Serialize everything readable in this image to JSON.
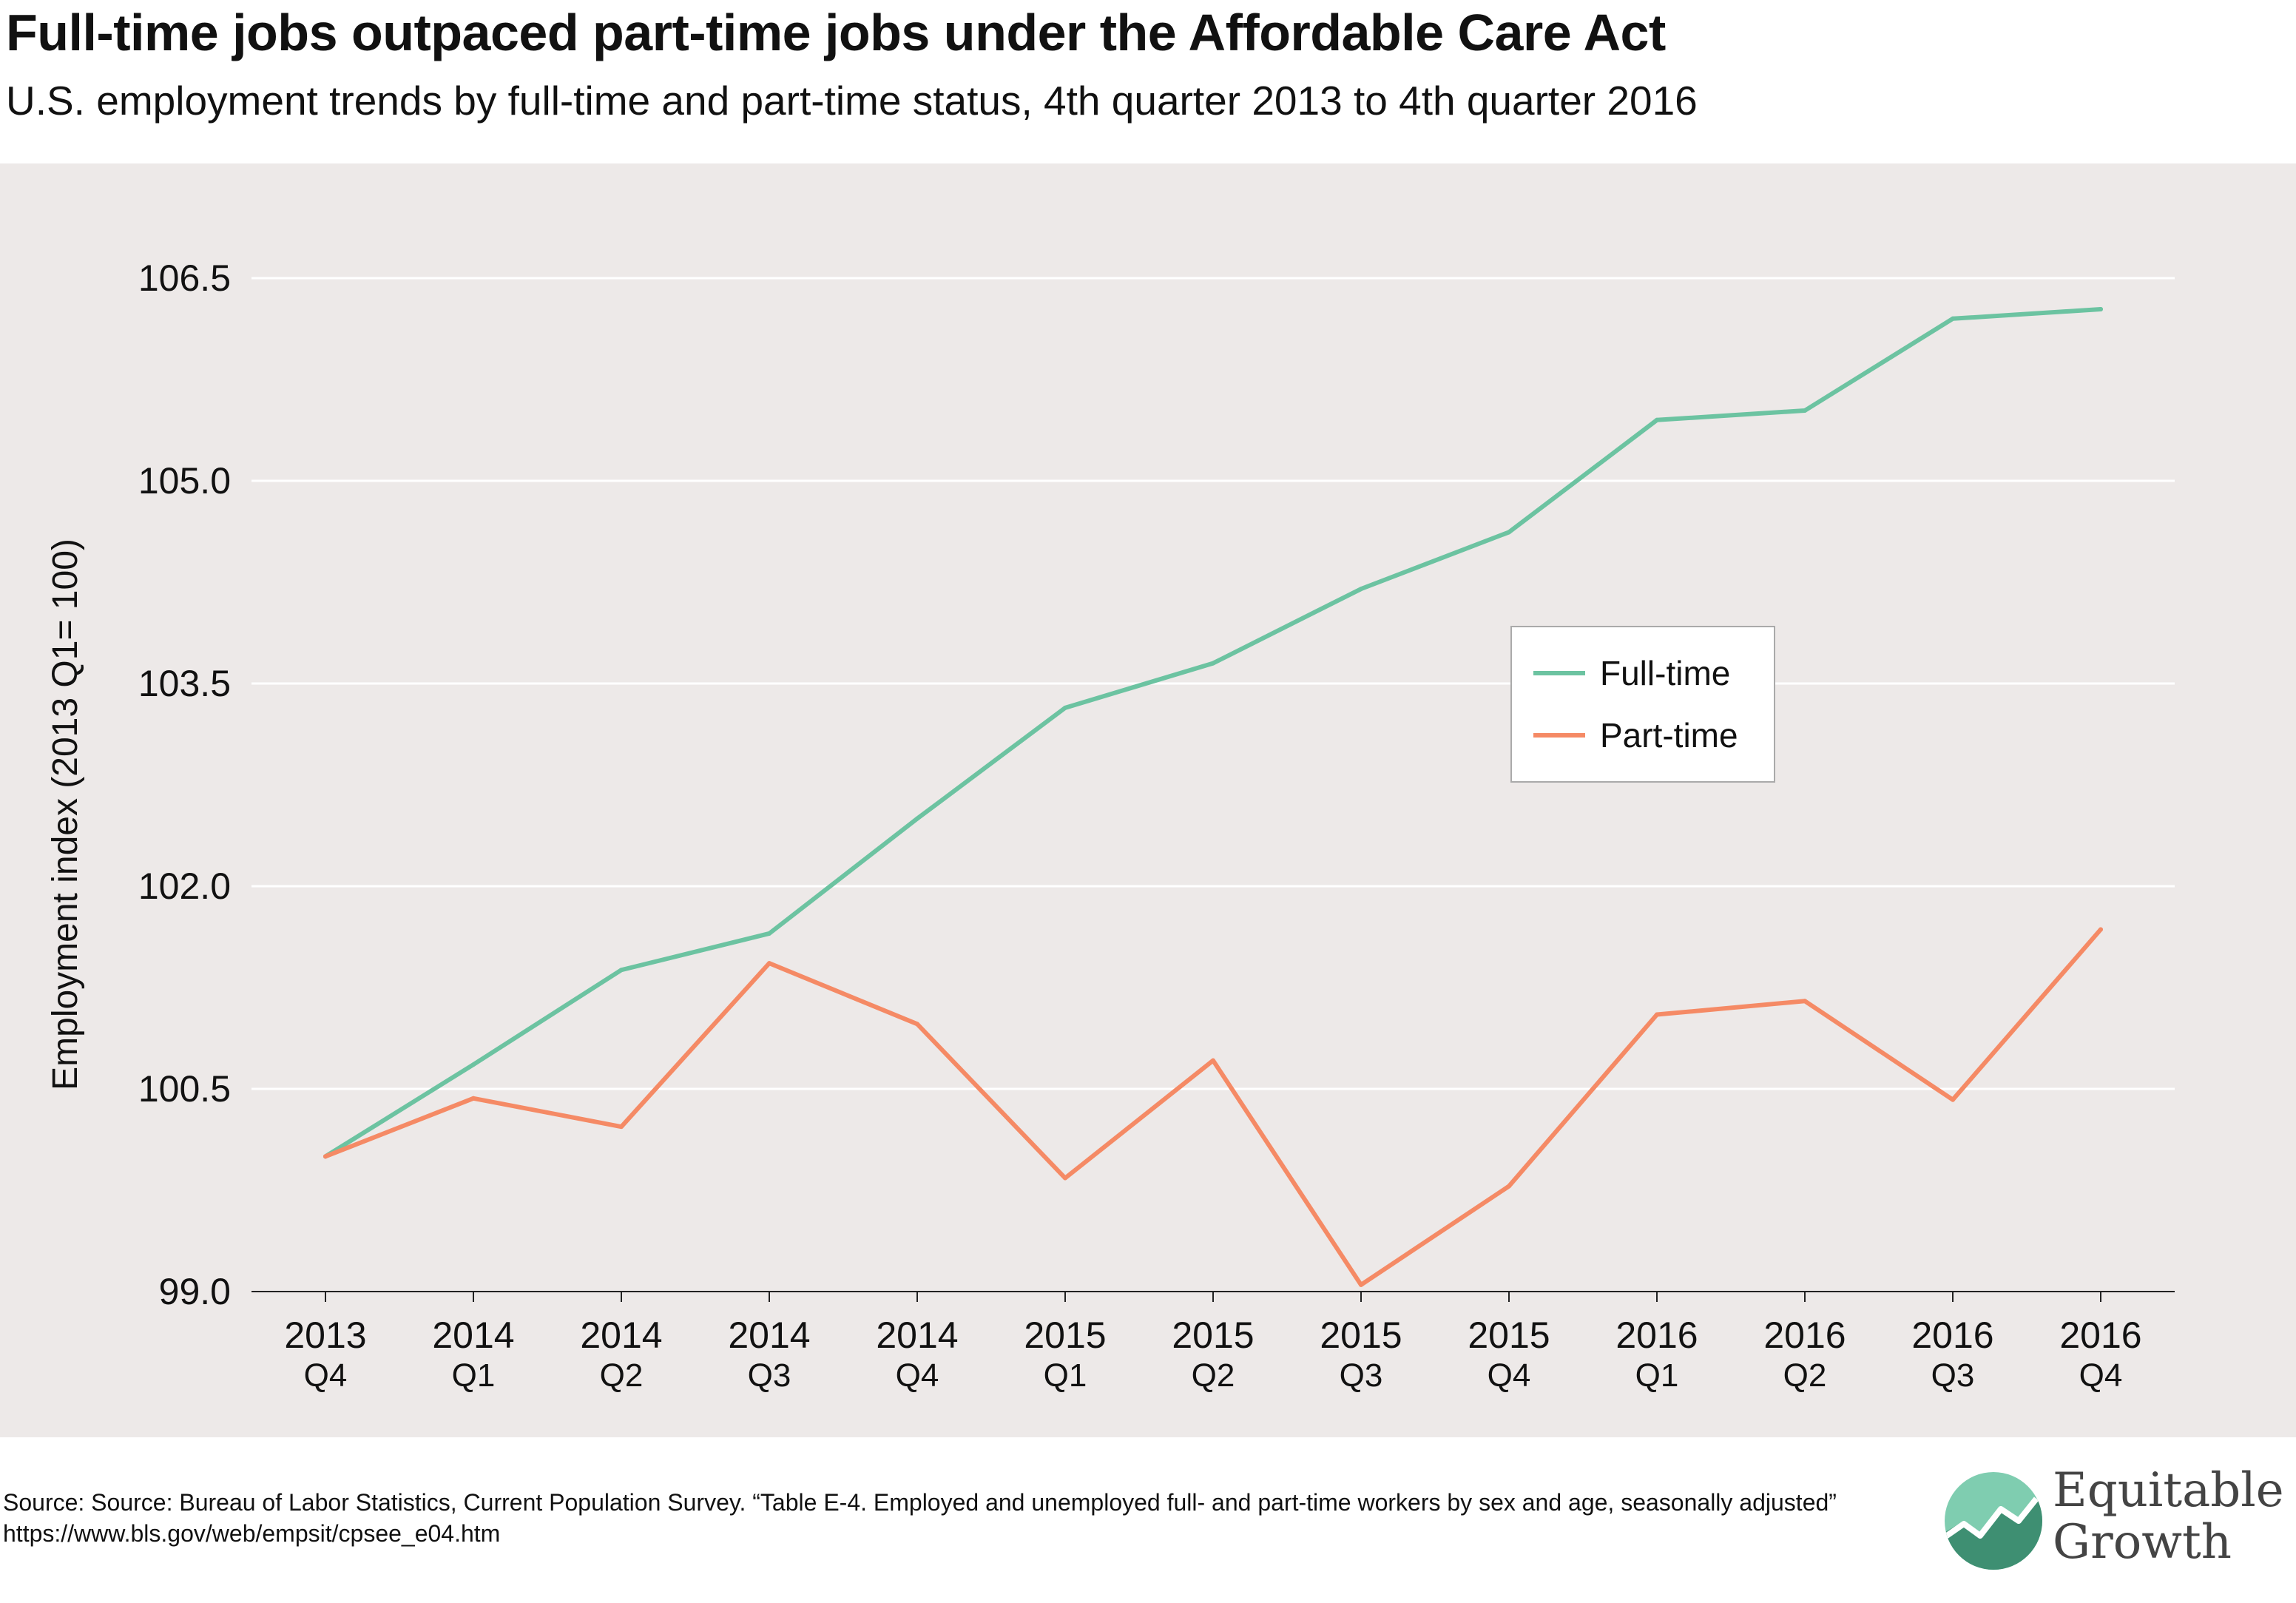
{
  "title": "Full-time jobs outpaced part-time jobs under the Affordable Care Act",
  "subtitle": "U.S. employment trends by full-time and part-time status, 4th quarter 2013 to 4th quarter 2016",
  "source": "Source: Source: Bureau of Labor Statistics, Current Population Survey. “Table E-4. Employed and unemployed full- and part-time workers by sex and age, seasonally adjusted” https://www.bls.gov/web/empsit/cpsee_e04.htm",
  "logo": {
    "line1": "Equitable",
    "line2": "Growth"
  },
  "colors": {
    "fulltime": "#6cc3a1",
    "parttime": "#f58a65",
    "background": "#ede9e8",
    "grid": "#ffffff",
    "logo_dark": "#3e8f72",
    "logo_light": "#7fcdb0"
  },
  "chart_data": {
    "type": "line",
    "ylabel": "Employment index (2013 Q1= 100)",
    "xlabel": "",
    "ylim": [
      99.0,
      106.5
    ],
    "yticks": [
      "99.0",
      "100.5",
      "102.0",
      "103.5",
      "105.0",
      "106.5"
    ],
    "ytick_values": [
      99.0,
      100.5,
      102.0,
      103.5,
      105.0,
      106.5
    ],
    "grid": "horizontal",
    "legend_position": "center-right",
    "categories": [
      {
        "year": "2013",
        "quarter": "Q4"
      },
      {
        "year": "2014",
        "quarter": "Q1"
      },
      {
        "year": "2014",
        "quarter": "Q2"
      },
      {
        "year": "2014",
        "quarter": "Q3"
      },
      {
        "year": "2014",
        "quarter": "Q4"
      },
      {
        "year": "2015",
        "quarter": "Q1"
      },
      {
        "year": "2015",
        "quarter": "Q2"
      },
      {
        "year": "2015",
        "quarter": "Q3"
      },
      {
        "year": "2015",
        "quarter": "Q4"
      },
      {
        "year": "2016",
        "quarter": "Q1"
      },
      {
        "year": "2016",
        "quarter": "Q2"
      },
      {
        "year": "2016",
        "quarter": "Q3"
      },
      {
        "year": "2016",
        "quarter": "Q4"
      }
    ],
    "series": [
      {
        "name": "Full-time",
        "color": "#6cc3a1",
        "values": [
          100.0,
          100.68,
          101.38,
          101.65,
          102.5,
          103.32,
          103.65,
          104.2,
          104.62,
          105.45,
          105.52,
          106.2,
          106.27
        ]
      },
      {
        "name": "Part-time",
        "color": "#f58a65",
        "values": [
          100.0,
          100.43,
          100.22,
          101.43,
          100.98,
          99.84,
          100.71,
          99.05,
          99.78,
          101.05,
          101.15,
          100.42,
          101.68
        ]
      }
    ]
  }
}
